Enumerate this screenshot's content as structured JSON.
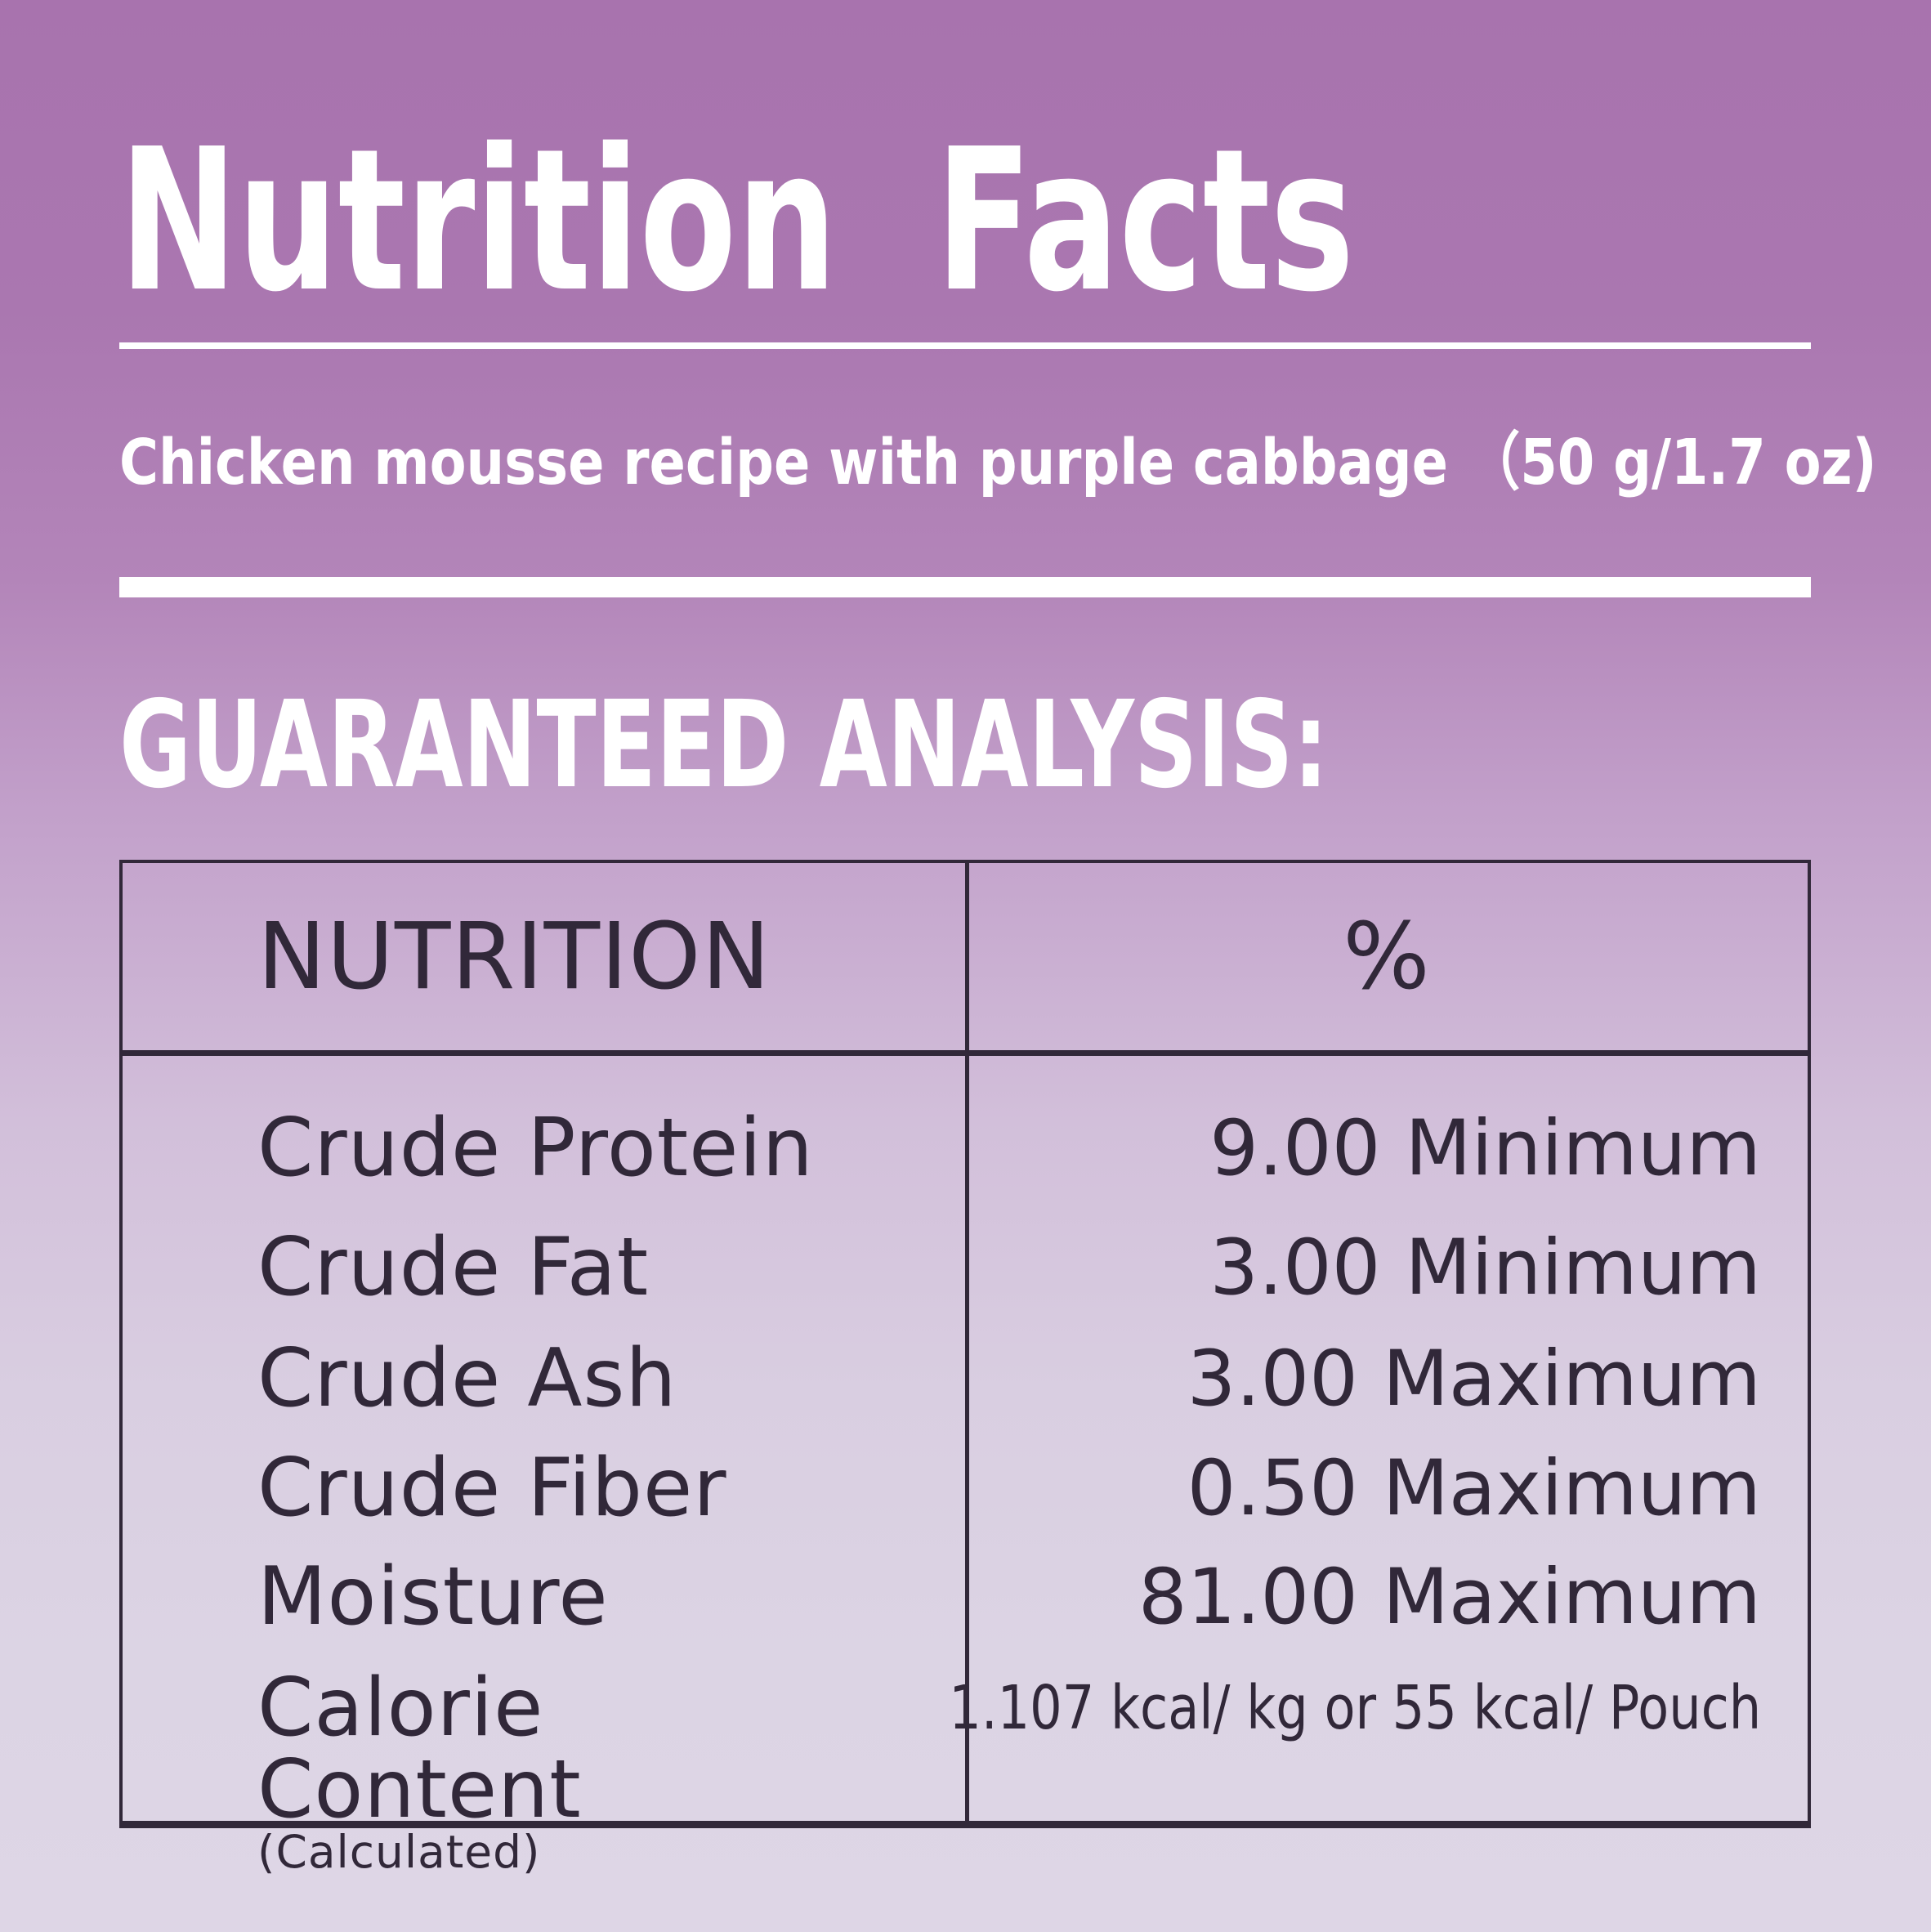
{
  "label": {
    "title": "Nutrition Facts",
    "subtitle": "Chicken mousse recipe with purple cabbage （50 g/1.7 oz)",
    "section_heading": "GUARANTEED ANALYSIS:",
    "table": {
      "columns": [
        "NUTRITION",
        "%"
      ],
      "rows": [
        {
          "label": "Crude Protein",
          "value": "9.00 Minimum"
        },
        {
          "label": "Crude Fat",
          "value": "3.00 Minimum"
        },
        {
          "label": "Crude Ash",
          "value": "3.00 Maximum"
        },
        {
          "label": "Crude Fiber",
          "value": "0.50 Maximum"
        },
        {
          "label": "Moisture",
          "value": "81.00 Maximum"
        },
        {
          "label": "Calorie Content",
          "sublabel": "(Calculated)",
          "value": "1.107 kcal/ kg or 55 kcal/ Pouch"
        }
      ]
    },
    "colors": {
      "background_top": "#A873AE",
      "background_bottom": "#DED6E6",
      "ink": "#312839",
      "text": "#FFFFFF"
    }
  }
}
